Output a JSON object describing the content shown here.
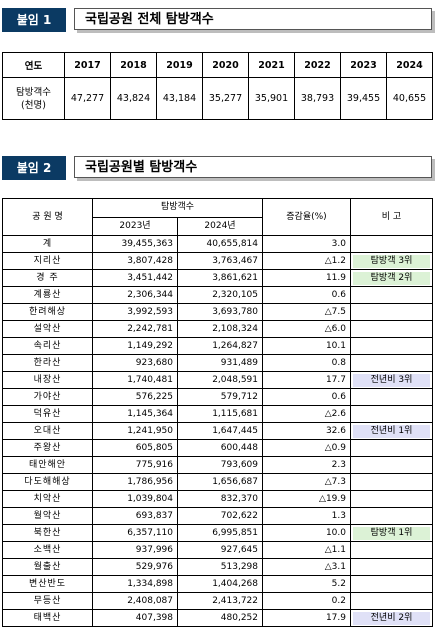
{
  "section1": {
    "badge": "붙임 1",
    "title": "국립공원 전체 탐방객수"
  },
  "table1": {
    "header_label": "연도",
    "years": [
      "2017",
      "2018",
      "2019",
      "2020",
      "2021",
      "2022",
      "2023",
      "2024"
    ],
    "row_label_line1": "탐방객수",
    "row_label_line2": "(천명)",
    "values": [
      "47,277",
      "43,824",
      "43,184",
      "35,277",
      "35,901",
      "38,793",
      "39,455",
      "40,655"
    ]
  },
  "section2": {
    "badge": "붙임 2",
    "title": "국립공원별 탐방객수"
  },
  "table2": {
    "col_park": "공 원 명",
    "col_visitors": "탐방객수",
    "col_2023": "2023년",
    "col_2024": "2024년",
    "col_rate": "증감율(%)",
    "col_note": "비 고",
    "rows": [
      {
        "name": "계",
        "y2023": "39,455,363",
        "y2024": "40,655,814",
        "rate": "3.0",
        "note": "",
        "note_color": ""
      },
      {
        "name": "지리산",
        "y2023": "3,807,428",
        "y2024": "3,763,467",
        "rate": "△1.2",
        "note": "탐방객 3위",
        "note_color": "green"
      },
      {
        "name": "경  주",
        "y2023": "3,451,442",
        "y2024": "3,861,621",
        "rate": "11.9",
        "note": "탐방객 2위",
        "note_color": "green"
      },
      {
        "name": "계룡산",
        "y2023": "2,306,344",
        "y2024": "2,320,105",
        "rate": "0.6",
        "note": "",
        "note_color": ""
      },
      {
        "name": "한려해상",
        "y2023": "3,992,593",
        "y2024": "3,693,780",
        "rate": "△7.5",
        "note": "",
        "note_color": ""
      },
      {
        "name": "설악산",
        "y2023": "2,242,781",
        "y2024": "2,108,324",
        "rate": "△6.0",
        "note": "",
        "note_color": ""
      },
      {
        "name": "속리산",
        "y2023": "1,149,292",
        "y2024": "1,264,827",
        "rate": "10.1",
        "note": "",
        "note_color": ""
      },
      {
        "name": "한라산",
        "y2023": "923,680",
        "y2024": "931,489",
        "rate": "0.8",
        "note": "",
        "note_color": ""
      },
      {
        "name": "내장산",
        "y2023": "1,740,481",
        "y2024": "2,048,591",
        "rate": "17.7",
        "note": "전년비 3위",
        "note_color": "blue"
      },
      {
        "name": "가야산",
        "y2023": "576,225",
        "y2024": "579,712",
        "rate": "0.6",
        "note": "",
        "note_color": ""
      },
      {
        "name": "덕유산",
        "y2023": "1,145,364",
        "y2024": "1,115,681",
        "rate": "△2.6",
        "note": "",
        "note_color": ""
      },
      {
        "name": "오대산",
        "y2023": "1,241,950",
        "y2024": "1,647,445",
        "rate": "32.6",
        "note": "전년비 1위",
        "note_color": "blue"
      },
      {
        "name": "주왕산",
        "y2023": "605,805",
        "y2024": "600,448",
        "rate": "△0.9",
        "note": "",
        "note_color": ""
      },
      {
        "name": "태안해안",
        "y2023": "775,916",
        "y2024": "793,609",
        "rate": "2.3",
        "note": "",
        "note_color": ""
      },
      {
        "name": "다도해해상",
        "y2023": "1,786,956",
        "y2024": "1,656,687",
        "rate": "△7.3",
        "note": "",
        "note_color": ""
      },
      {
        "name": "치악산",
        "y2023": "1,039,804",
        "y2024": "832,370",
        "rate": "△19.9",
        "note": "",
        "note_color": ""
      },
      {
        "name": "월악산",
        "y2023": "693,837",
        "y2024": "702,622",
        "rate": "1.3",
        "note": "",
        "note_color": ""
      },
      {
        "name": "북한산",
        "y2023": "6,357,110",
        "y2024": "6,995,851",
        "rate": "10.0",
        "note": "탐방객 1위",
        "note_color": "green"
      },
      {
        "name": "소백산",
        "y2023": "937,996",
        "y2024": "927,645",
        "rate": "△1.1",
        "note": "",
        "note_color": ""
      },
      {
        "name": "월출산",
        "y2023": "529,976",
        "y2024": "513,298",
        "rate": "△3.1",
        "note": "",
        "note_color": ""
      },
      {
        "name": "변산반도",
        "y2023": "1,334,898",
        "y2024": "1,404,268",
        "rate": "5.2",
        "note": "",
        "note_color": ""
      },
      {
        "name": "무등산",
        "y2023": "2,408,087",
        "y2024": "2,413,722",
        "rate": "0.2",
        "note": "",
        "note_color": ""
      },
      {
        "name": "태백산",
        "y2023": "407,398",
        "y2024": "480,252",
        "rate": "17.9",
        "note": "전년비 2위",
        "note_color": "blue"
      }
    ]
  }
}
